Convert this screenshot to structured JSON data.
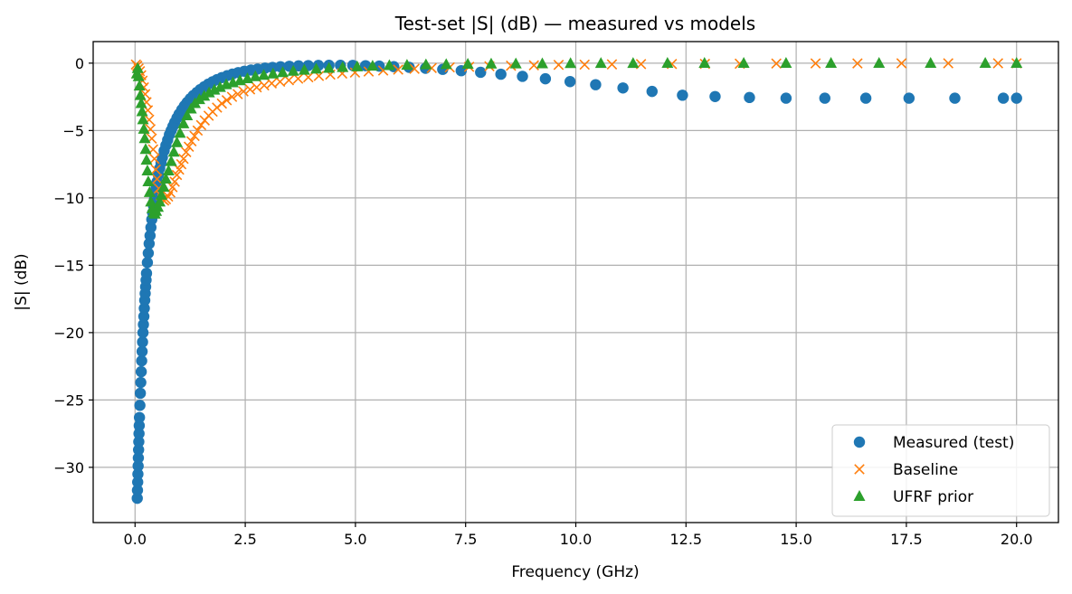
{
  "chart_data": {
    "type": "scatter",
    "title": "Test-set |S| (dB) — measured vs models",
    "xlabel": "Frequency (GHz)",
    "ylabel": "|S| (dB)",
    "xlim": [
      -0.95,
      20.95
    ],
    "ylim": [
      -34.1,
      1.6
    ],
    "xticks": [
      0.0,
      2.5,
      5.0,
      7.5,
      10.0,
      12.5,
      15.0,
      17.5,
      20.0
    ],
    "xtick_labels": [
      "0.0",
      "2.5",
      "5.0",
      "7.5",
      "10.0",
      "12.5",
      "15.0",
      "17.5",
      "20.0"
    ],
    "yticks": [
      0,
      -5,
      -10,
      -15,
      -20,
      -25,
      -30
    ],
    "ytick_labels": [
      "0",
      "−5",
      "−10",
      "−15",
      "−20",
      "−25",
      "−30"
    ],
    "grid": true,
    "legend_position": "bottom-right",
    "series": [
      {
        "name": "Measured (test)",
        "marker": "circle",
        "color": "#1f77b4",
        "x": [
          0.05,
          0.055,
          0.06,
          0.065,
          0.07,
          0.075,
          0.08,
          0.085,
          0.09,
          0.095,
          0.1,
          0.11,
          0.12,
          0.13,
          0.14,
          0.15,
          0.16,
          0.17,
          0.18,
          0.19,
          0.2,
          0.21,
          0.22,
          0.23,
          0.24,
          0.25,
          0.26,
          0.28,
          0.3,
          0.32,
          0.34,
          0.36,
          0.38,
          0.4,
          0.42,
          0.44,
          0.46,
          0.48,
          0.5,
          0.53,
          0.56,
          0.59,
          0.62,
          0.66,
          0.7,
          0.74,
          0.78,
          0.82,
          0.86,
          0.9,
          0.95,
          1.0,
          1.06,
          1.12,
          1.18,
          1.25,
          1.32,
          1.4,
          1.48,
          1.57,
          1.66,
          1.76,
          1.86,
          1.97,
          2.09,
          2.21,
          2.34,
          2.48,
          2.63,
          2.78,
          2.95,
          3.12,
          3.3,
          3.5,
          3.71,
          3.93,
          4.16,
          4.4,
          4.66,
          4.94,
          5.23,
          5.54,
          5.87,
          6.22,
          6.59,
          6.98,
          7.4,
          7.84,
          8.3,
          8.79,
          9.31,
          9.87,
          10.45,
          11.07,
          11.73,
          12.42,
          13.16,
          13.94,
          14.77,
          15.65,
          16.58,
          17.56,
          18.6,
          19.7,
          20.0
        ],
        "y": [
          -32.3,
          -31.7,
          -31.1,
          -30.5,
          -29.9,
          -29.3,
          -28.7,
          -28.1,
          -27.5,
          -26.9,
          -26.3,
          -25.4,
          -24.5,
          -23.7,
          -22.9,
          -22.1,
          -21.4,
          -20.7,
          -20.0,
          -19.4,
          -18.8,
          -18.2,
          -17.6,
          -17.1,
          -16.6,
          -16.1,
          -15.6,
          -14.8,
          -14.1,
          -13.4,
          -12.8,
          -12.2,
          -11.6,
          -11.1,
          -10.6,
          -10.1,
          -9.6,
          -9.2,
          -8.8,
          -8.3,
          -7.8,
          -7.4,
          -7.0,
          -6.5,
          -6.1,
          -5.7,
          -5.3,
          -4.99,
          -4.68,
          -4.4,
          -4.07,
          -3.78,
          -3.46,
          -3.17,
          -2.92,
          -2.65,
          -2.41,
          -2.18,
          -1.96,
          -1.75,
          -1.56,
          -1.38,
          -1.22,
          -1.07,
          -0.93,
          -0.81,
          -0.7,
          -0.6,
          -0.51,
          -0.44,
          -0.37,
          -0.32,
          -0.27,
          -0.23,
          -0.2,
          -0.18,
          -0.17,
          -0.16,
          -0.16,
          -0.17,
          -0.19,
          -0.22,
          -0.26,
          -0.31,
          -0.38,
          -0.46,
          -0.56,
          -0.68,
          -0.82,
          -0.98,
          -1.16,
          -1.37,
          -1.6,
          -1.84,
          -2.1,
          -2.38,
          -2.48,
          -2.55,
          -2.6,
          -2.6,
          -2.6,
          -2.6,
          -2.6,
          -2.6,
          -2.6
        ]
      },
      {
        "name": "Baseline",
        "marker": "x",
        "color": "#ff7f0e",
        "x": [
          0.02,
          0.05,
          0.08,
          0.11,
          0.14,
          0.17,
          0.2,
          0.23,
          0.26,
          0.29,
          0.32,
          0.35,
          0.38,
          0.41,
          0.44,
          0.47,
          0.5,
          0.54,
          0.58,
          0.62,
          0.66,
          0.7,
          0.75,
          0.8,
          0.85,
          0.9,
          0.95,
          1.0,
          1.05,
          1.1,
          1.16,
          1.22,
          1.28,
          1.35,
          1.42,
          1.5,
          1.58,
          1.67,
          1.76,
          1.86,
          1.97,
          2.08,
          2.2,
          2.33,
          2.46,
          2.61,
          2.76,
          2.93,
          3.1,
          3.29,
          3.49,
          3.7,
          3.93,
          4.17,
          4.43,
          4.7,
          4.99,
          5.3,
          5.63,
          5.97,
          6.34,
          6.73,
          7.14,
          7.58,
          8.04,
          8.53,
          9.05,
          9.61,
          10.2,
          10.82,
          11.48,
          12.18,
          12.93,
          13.72,
          14.55,
          15.44,
          16.39,
          17.39,
          18.45,
          19.58,
          20.0
        ],
        "y": [
          -0.1,
          -0.2,
          -0.4,
          -0.6,
          -0.9,
          -1.3,
          -1.8,
          -2.3,
          -2.9,
          -3.5,
          -4.2,
          -4.9,
          -5.6,
          -6.4,
          -7.1,
          -7.9,
          -8.6,
          -9.3,
          -9.8,
          -10.1,
          -10.2,
          -10.1,
          -9.9,
          -9.6,
          -9.2,
          -8.8,
          -8.3,
          -7.9,
          -7.5,
          -7.1,
          -6.6,
          -6.2,
          -5.8,
          -5.4,
          -5.0,
          -4.6,
          -4.25,
          -3.9,
          -3.6,
          -3.3,
          -3.0,
          -2.75,
          -2.5,
          -2.3,
          -2.1,
          -1.95,
          -1.8,
          -1.65,
          -1.5,
          -1.38,
          -1.27,
          -1.15,
          -1.05,
          -0.95,
          -0.85,
          -0.77,
          -0.7,
          -0.62,
          -0.55,
          -0.48,
          -0.42,
          -0.36,
          -0.31,
          -0.27,
          -0.23,
          -0.19,
          -0.16,
          -0.13,
          -0.11,
          -0.09,
          -0.07,
          -0.06,
          -0.05,
          -0.04,
          -0.03,
          -0.02,
          -0.02,
          -0.01,
          -0.01,
          -0.01,
          -0.01
        ]
      },
      {
        "name": "UFRF prior",
        "marker": "triangle",
        "color": "#2ca02c",
        "x": [
          0.04,
          0.06,
          0.08,
          0.1,
          0.12,
          0.14,
          0.16,
          0.18,
          0.2,
          0.22,
          0.24,
          0.26,
          0.28,
          0.3,
          0.33,
          0.36,
          0.39,
          0.42,
          0.45,
          0.48,
          0.52,
          0.56,
          0.6,
          0.65,
          0.7,
          0.76,
          0.82,
          0.88,
          0.95,
          1.02,
          1.1,
          1.18,
          1.27,
          1.36,
          1.46,
          1.57,
          1.68,
          1.8,
          1.93,
          2.07,
          2.22,
          2.38,
          2.55,
          2.73,
          2.92,
          3.13,
          3.35,
          3.59,
          3.84,
          4.11,
          4.4,
          4.71,
          5.04,
          5.39,
          5.77,
          6.17,
          6.6,
          7.06,
          7.55,
          8.08,
          8.64,
          9.24,
          9.88,
          10.57,
          11.3,
          12.08,
          12.92,
          13.81,
          14.77,
          15.79,
          16.88,
          18.05,
          19.29,
          20.0
        ],
        "y": [
          -0.8,
          -0.4,
          -1.0,
          -1.7,
          -2.4,
          -3.0,
          -3.6,
          -4.2,
          -4.9,
          -5.6,
          -6.4,
          -7.2,
          -8.0,
          -8.8,
          -9.6,
          -10.3,
          -10.8,
          -11.1,
          -11.2,
          -11.0,
          -10.7,
          -10.3,
          -9.8,
          -9.2,
          -8.6,
          -8.0,
          -7.3,
          -6.6,
          -5.9,
          -5.2,
          -4.5,
          -3.9,
          -3.4,
          -3.0,
          -2.7,
          -2.45,
          -2.2,
          -2.0,
          -1.8,
          -1.6,
          -1.45,
          -1.3,
          -1.15,
          -1.0,
          -0.9,
          -0.8,
          -0.7,
          -0.6,
          -0.52,
          -0.44,
          -0.38,
          -0.32,
          -0.27,
          -0.22,
          -0.18,
          -0.15,
          -0.12,
          -0.1,
          -0.08,
          -0.06,
          -0.05,
          -0.04,
          -0.03,
          -0.02,
          -0.02,
          -0.01,
          -0.01,
          -0.01,
          -0.01,
          -0.01,
          -0.01,
          -0.01,
          -0.01,
          -0.01
        ]
      }
    ]
  }
}
